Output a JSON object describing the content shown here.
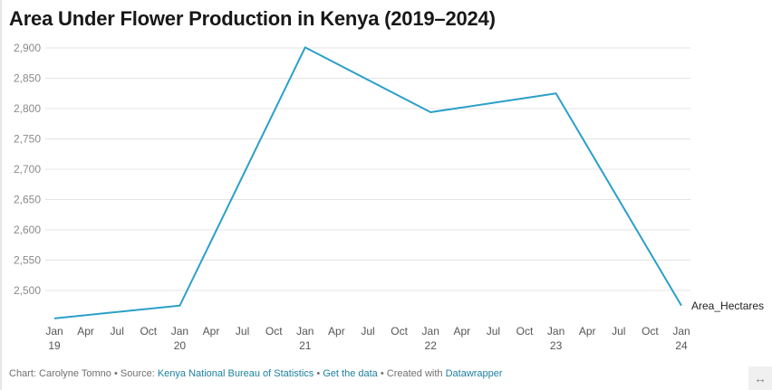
{
  "title": "Area Under Flower Production in Kenya (2019–2024)",
  "footer": {
    "prefix": "Chart: Carolyne Tomno • Source: ",
    "source_link": "Kenya National Bureau of Statistics",
    "sep1": " • ",
    "data_link": "Get the data",
    "sep2": " • Created with ",
    "dw_link": "Datawrapper"
  },
  "expand_icon": "↔",
  "colors": {
    "line": "#2ba0c8",
    "grid": "#e4e4e4",
    "tick_text": "#8a8a8a",
    "axis_text": "#555555"
  },
  "chart_data": {
    "type": "line",
    "title": "Area Under Flower Production in Kenya (2019–2024)",
    "xlabel": "",
    "ylabel": "",
    "series": [
      {
        "name": "Area_Hectares",
        "x": [
          "2019-01",
          "2020-01",
          "2021-01",
          "2022-01",
          "2023-01",
          "2024-01"
        ],
        "values": [
          2454,
          2475,
          2901,
          2794,
          2825,
          2475
        ]
      }
    ],
    "ylim": [
      2450,
      2910
    ],
    "yticks": [
      2500,
      2550,
      2600,
      2650,
      2700,
      2750,
      2800,
      2850,
      2900
    ],
    "ytick_labels": [
      "2,500",
      "2,550",
      "2,600",
      "2,650",
      "2,700",
      "2,750",
      "2,800",
      "2,850",
      "2,900"
    ],
    "xticks": [
      {
        "m": 0,
        "top": "Jan",
        "bottom": "19"
      },
      {
        "m": 3,
        "top": "Apr",
        "bottom": ""
      },
      {
        "m": 6,
        "top": "Jul",
        "bottom": ""
      },
      {
        "m": 9,
        "top": "Oct",
        "bottom": ""
      },
      {
        "m": 12,
        "top": "Jan",
        "bottom": "20"
      },
      {
        "m": 15,
        "top": "Apr",
        "bottom": ""
      },
      {
        "m": 18,
        "top": "Jul",
        "bottom": ""
      },
      {
        "m": 21,
        "top": "Oct",
        "bottom": ""
      },
      {
        "m": 24,
        "top": "Jan",
        "bottom": "21"
      },
      {
        "m": 27,
        "top": "Apr",
        "bottom": ""
      },
      {
        "m": 30,
        "top": "Jul",
        "bottom": ""
      },
      {
        "m": 33,
        "top": "Oct",
        "bottom": ""
      },
      {
        "m": 36,
        "top": "Jan",
        "bottom": "22"
      },
      {
        "m": 39,
        "top": "Apr",
        "bottom": ""
      },
      {
        "m": 42,
        "top": "Jul",
        "bottom": ""
      },
      {
        "m": 45,
        "top": "Oct",
        "bottom": ""
      },
      {
        "m": 48,
        "top": "Jan",
        "bottom": "23"
      },
      {
        "m": 51,
        "top": "Apr",
        "bottom": ""
      },
      {
        "m": 54,
        "top": "Jul",
        "bottom": ""
      },
      {
        "m": 57,
        "top": "Oct",
        "bottom": ""
      },
      {
        "m": 60,
        "top": "Jan",
        "bottom": "24"
      }
    ],
    "grid": true,
    "legend": "direct-label-right"
  }
}
